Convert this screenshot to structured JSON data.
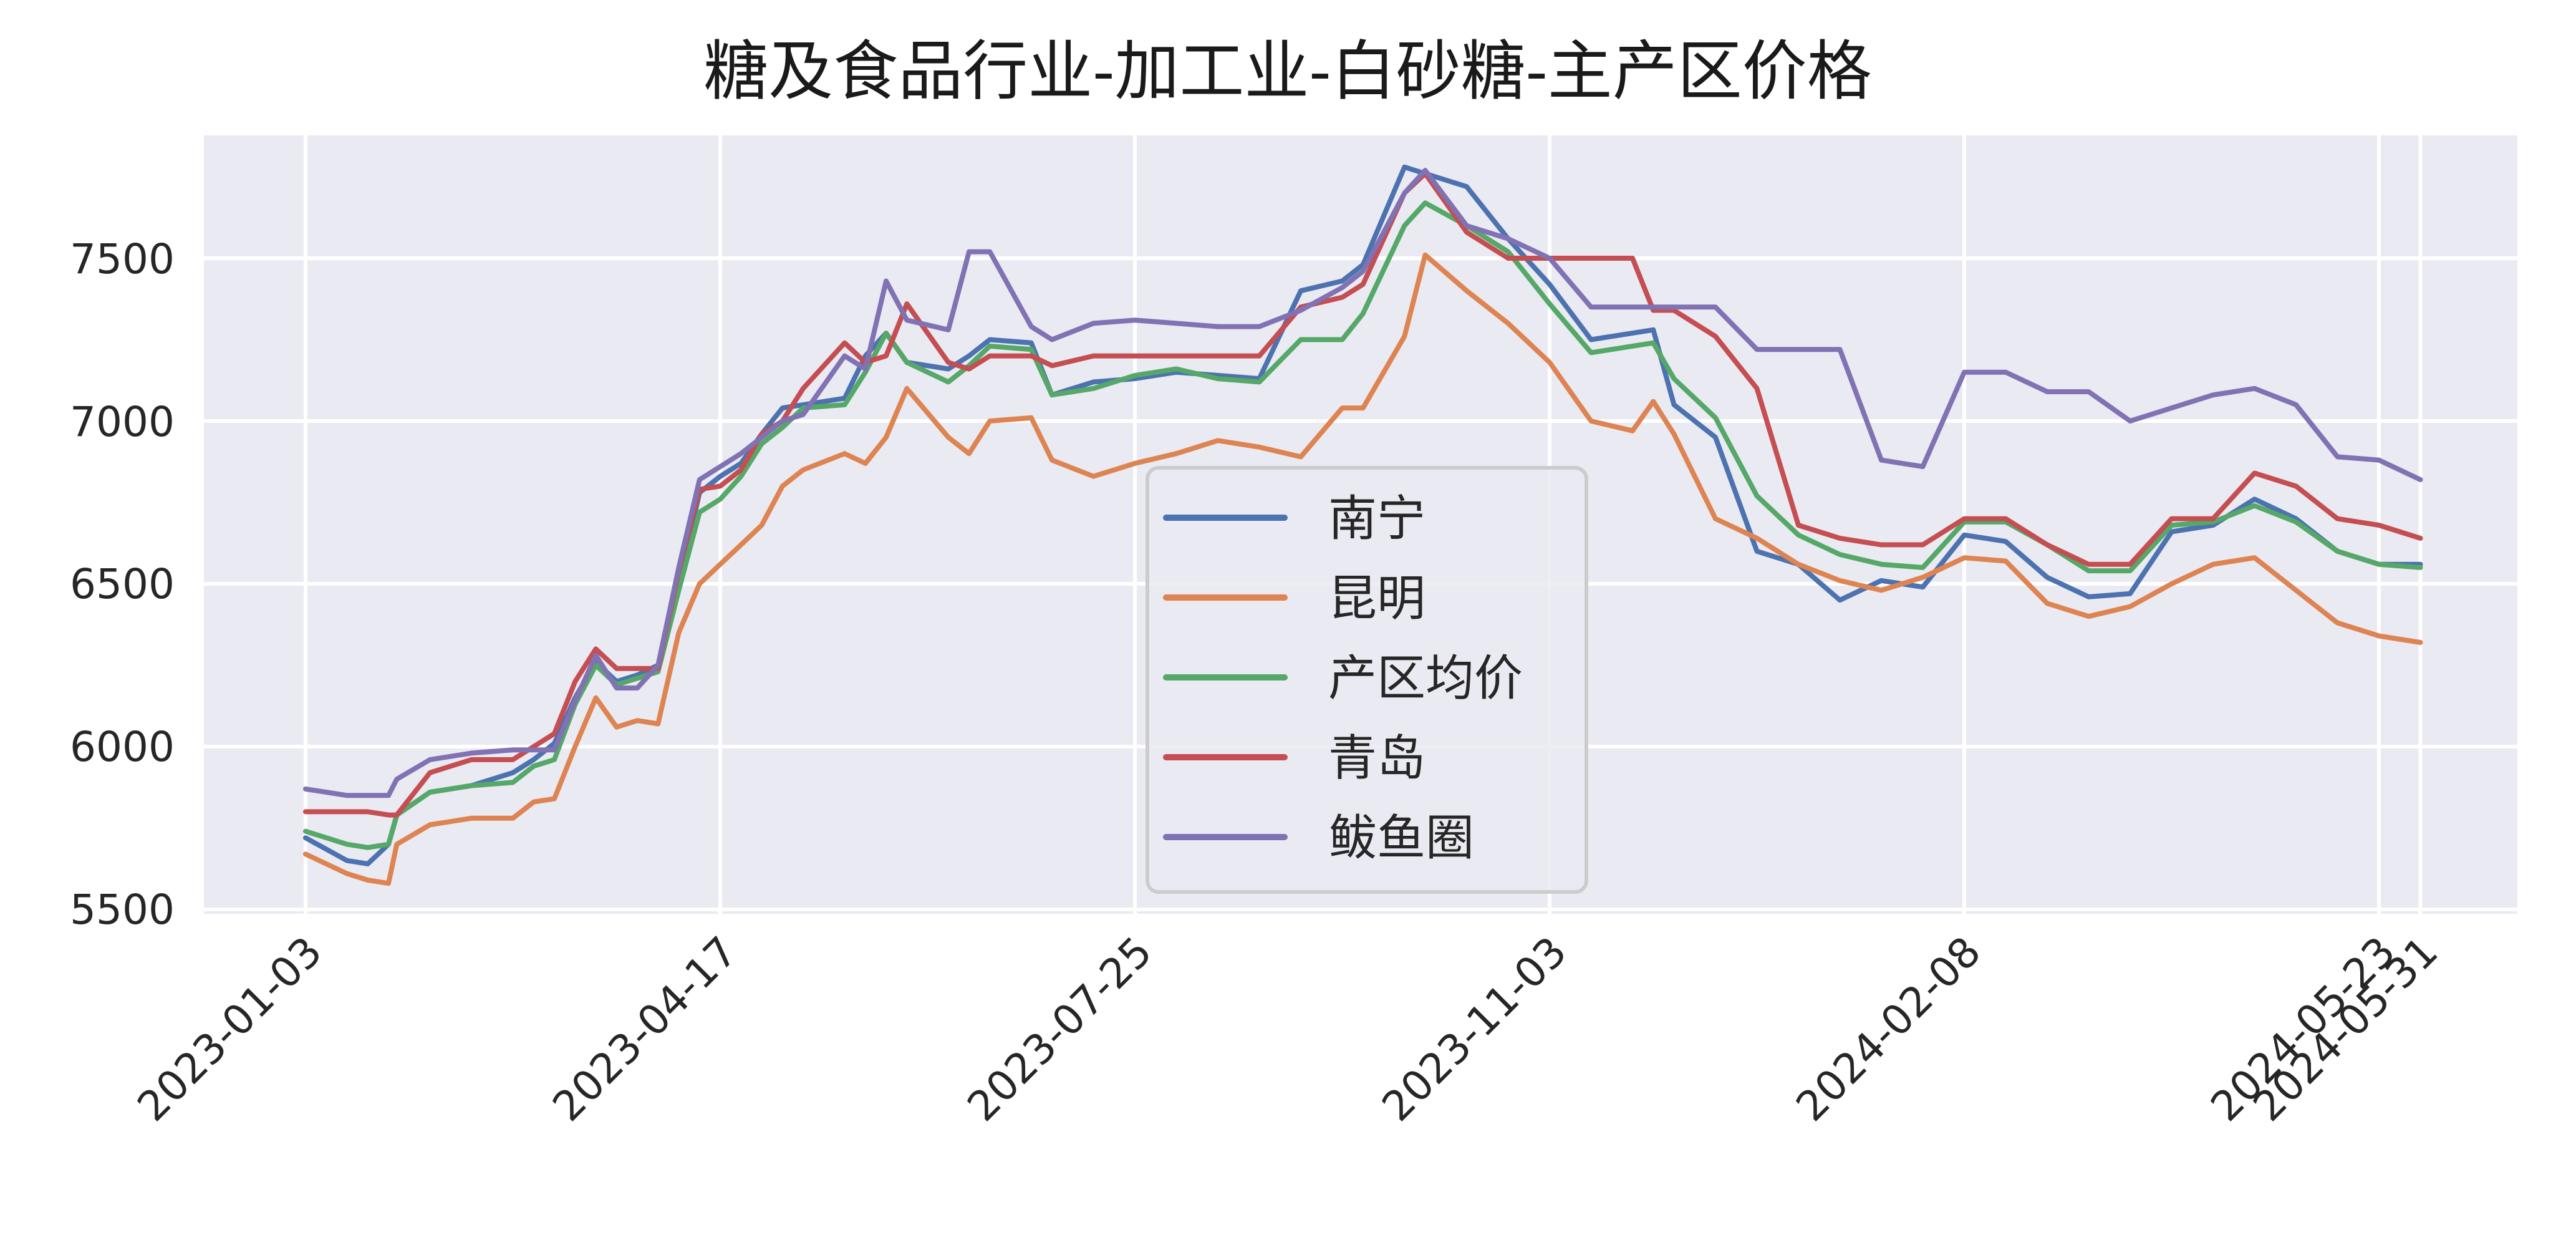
{
  "chart_data": {
    "type": "line",
    "title": "糖及食品行业-加工业-白砂糖-主产区价格",
    "xlabel": "",
    "ylabel": "",
    "ylim": [
      5450,
      7880
    ],
    "yticks": [
      5500,
      6000,
      6500,
      7000,
      7500
    ],
    "xticks": [
      {
        "label": "2023-01-03",
        "pos": 0
      },
      {
        "label": "2023-04-17",
        "pos": 1
      },
      {
        "label": "2023-07-25",
        "pos": 2
      },
      {
        "label": "2023-11-03",
        "pos": 3
      },
      {
        "label": "2024-02-08",
        "pos": 4
      },
      {
        "label": "2024-05-23",
        "pos": 5
      },
      {
        "label": "2024-05-31",
        "pos": 5.1
      }
    ],
    "grid": true,
    "legend_position": "center",
    "x_pos": [
      0,
      0.1,
      0.15,
      0.2,
      0.22,
      0.3,
      0.4,
      0.5,
      0.55,
      0.6,
      0.65,
      0.7,
      0.75,
      0.8,
      0.85,
      0.9,
      0.95,
      1.0,
      1.05,
      1.1,
      1.15,
      1.2,
      1.3,
      1.35,
      1.4,
      1.45,
      1.55,
      1.6,
      1.65,
      1.75,
      1.8,
      1.9,
      2.0,
      2.1,
      2.2,
      2.3,
      2.4,
      2.5,
      2.55,
      2.65,
      2.7,
      2.8,
      2.9,
      3.0,
      3.1,
      3.2,
      3.25,
      3.3,
      3.4,
      3.5,
      3.6,
      3.7,
      3.8,
      3.9,
      4.0,
      4.1,
      4.2,
      4.3,
      4.4,
      4.5,
      4.6,
      4.7,
      4.8,
      4.9,
      5.0,
      5.1
    ],
    "series": [
      {
        "name": "南宁",
        "color": "#4c72b0",
        "values": [
          5720,
          5650,
          5640,
          5700,
          5790,
          5860,
          5880,
          5920,
          5960,
          6010,
          6150,
          6260,
          6200,
          6220,
          6250,
          6500,
          6780,
          6830,
          6870,
          6960,
          7040,
          7050,
          7070,
          7200,
          7270,
          7180,
          7160,
          7200,
          7250,
          7240,
          7080,
          7120,
          7130,
          7150,
          7140,
          7130,
          7400,
          7430,
          7480,
          7780,
          7760,
          7720,
          7560,
          7420,
          7250,
          7270,
          7280,
          7050,
          6950,
          6600,
          6560,
          6450,
          6510,
          6490,
          6650,
          6630,
          6520,
          6460,
          6470,
          6660,
          6680,
          6760,
          6700,
          6600,
          6560,
          6560
        ]
      },
      {
        "name": "昆明",
        "color": "#dd8452",
        "values": [
          5670,
          5610,
          5590,
          5580,
          5700,
          5760,
          5780,
          5780,
          5830,
          5840,
          6000,
          6150,
          6060,
          6080,
          6070,
          6350,
          6500,
          6560,
          6620,
          6680,
          6800,
          6850,
          6900,
          6870,
          6950,
          7100,
          6950,
          6900,
          7000,
          7010,
          6880,
          6830,
          6870,
          6900,
          6940,
          6920,
          6890,
          7040,
          7040,
          7260,
          7510,
          7400,
          7300,
          7180,
          7000,
          6970,
          7060,
          6960,
          6700,
          6640,
          6560,
          6510,
          6480,
          6520,
          6580,
          6570,
          6440,
          6400,
          6430,
          6500,
          6560,
          6580,
          6480,
          6380,
          6340,
          6320
        ]
      },
      {
        "name": "产区均价",
        "color": "#55a868",
        "values": [
          5740,
          5700,
          5690,
          5700,
          5790,
          5860,
          5880,
          5890,
          5940,
          5960,
          6130,
          6250,
          6190,
          6210,
          6230,
          6480,
          6720,
          6760,
          6830,
          6930,
          6980,
          7040,
          7050,
          7150,
          7270,
          7180,
          7120,
          7170,
          7230,
          7220,
          7080,
          7100,
          7140,
          7160,
          7130,
          7120,
          7250,
          7250,
          7330,
          7600,
          7670,
          7600,
          7520,
          7360,
          7210,
          7230,
          7240,
          7130,
          7010,
          6770,
          6650,
          6590,
          6560,
          6550,
          6690,
          6690,
          6620,
          6540,
          6540,
          6680,
          6690,
          6740,
          6690,
          6600,
          6560,
          6550
        ]
      },
      {
        "name": "青岛",
        "color": "#c44e52",
        "values": [
          5800,
          5800,
          5800,
          5790,
          5790,
          5920,
          5960,
          5960,
          6000,
          6040,
          6200,
          6300,
          6240,
          6240,
          6240,
          6540,
          6790,
          6800,
          6850,
          6960,
          7000,
          7100,
          7240,
          7180,
          7200,
          7360,
          7180,
          7160,
          7200,
          7200,
          7170,
          7200,
          7200,
          7200,
          7200,
          7200,
          7350,
          7380,
          7420,
          7700,
          7760,
          7580,
          7500,
          7500,
          7500,
          7500,
          7340,
          7340,
          7260,
          7100,
          6680,
          6640,
          6620,
          6620,
          6700,
          6700,
          6620,
          6560,
          6560,
          6700,
          6700,
          6840,
          6800,
          6700,
          6680,
          6640
        ]
      },
      {
        "name": "鲅鱼圈",
        "color": "#8172b3",
        "values": [
          5870,
          5850,
          5850,
          5850,
          5900,
          5960,
          5980,
          5990,
          5990,
          5990,
          6140,
          6280,
          6180,
          6180,
          6250,
          6550,
          6820,
          6860,
          6900,
          6950,
          7000,
          7020,
          7200,
          7160,
          7430,
          7310,
          7280,
          7520,
          7520,
          7290,
          7250,
          7300,
          7310,
          7300,
          7290,
          7290,
          7340,
          7410,
          7460,
          7700,
          7770,
          7600,
          7560,
          7500,
          7350,
          7350,
          7350,
          7350,
          7350,
          7220,
          7220,
          7220,
          6880,
          6860,
          7150,
          7150,
          7090,
          7090,
          7000,
          7040,
          7080,
          7100,
          7050,
          6890,
          6880,
          6820
        ]
      }
    ]
  },
  "legend": {
    "items": [
      {
        "label": "南宁",
        "color": "#4c72b0"
      },
      {
        "label": "昆明",
        "color": "#dd8452"
      },
      {
        "label": "产区均价",
        "color": "#55a868"
      },
      {
        "label": "青岛",
        "color": "#c44e52"
      },
      {
        "label": "鲅鱼圈",
        "color": "#8172b3"
      }
    ]
  },
  "ytick_labels": [
    "7500",
    "7000",
    "6500",
    "6000",
    "5500"
  ],
  "xtick_labels": [
    "2023-01-03",
    "2023-04-17",
    "2023-07-25",
    "2023-11-03",
    "2024-02-08",
    "2024-05-23",
    "2024-05-31"
  ]
}
